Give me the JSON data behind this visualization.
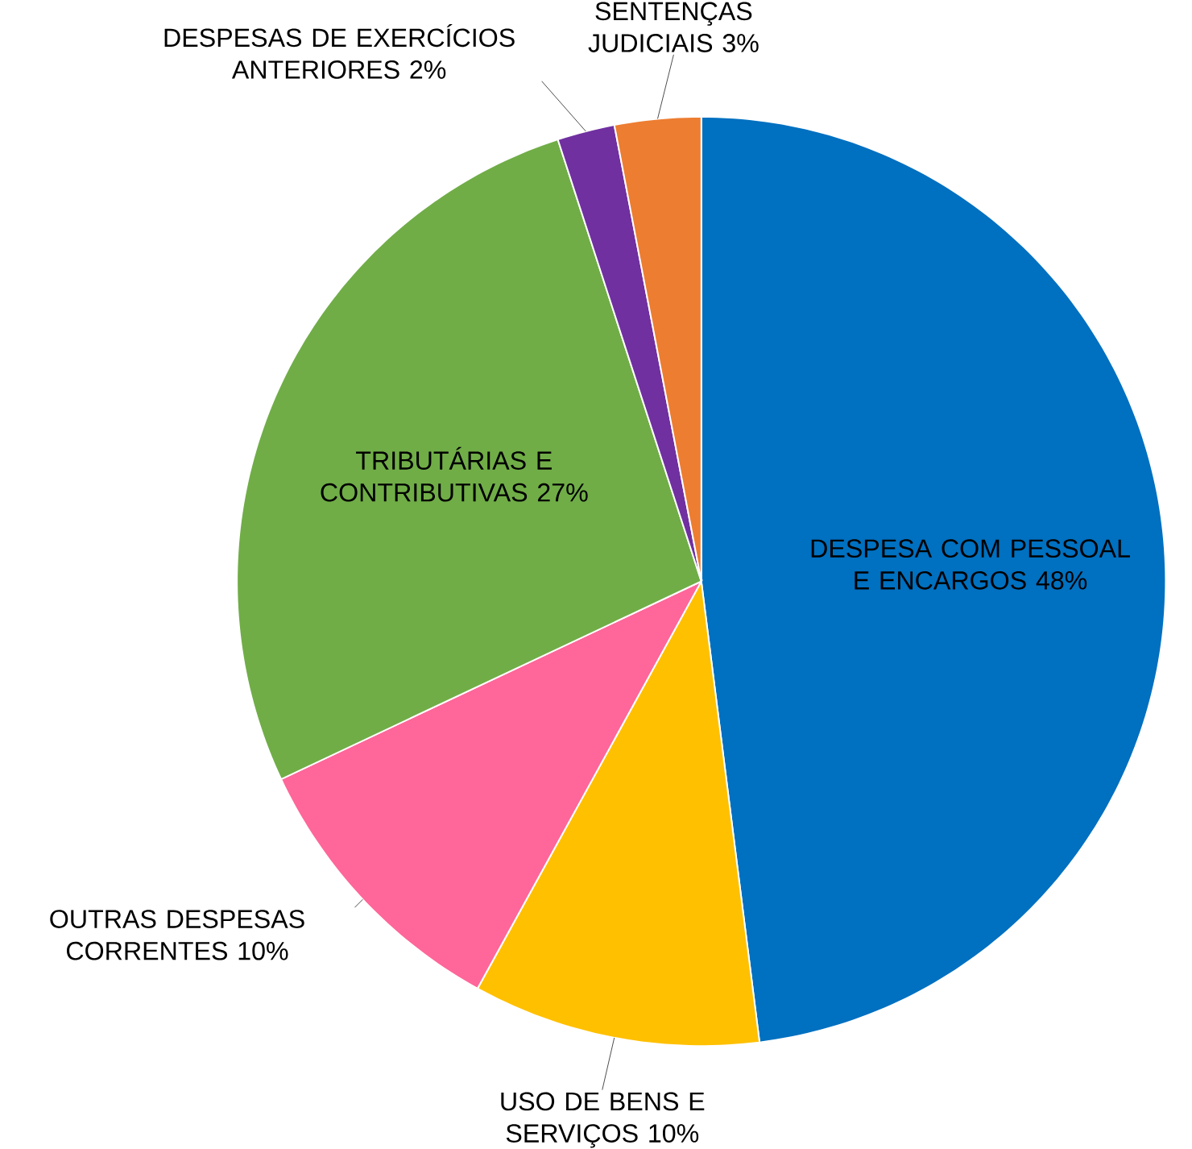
{
  "chart_data": {
    "type": "pie",
    "categories": [
      "DESPESA COM PESSOAL E ENCARGOS",
      "USO DE BENS E SERVIÇOS",
      "OUTRAS DESPESAS CORRENTES",
      "TRIBUTÁRIAS E CONTRIBUTIVAS",
      "DESPESAS DE EXERCÍCIOS ANTERIORES",
      "SENTENÇAS JUDICIAIS"
    ],
    "values": [
      48,
      10,
      10,
      27,
      2,
      3
    ],
    "value_labels": [
      "48%",
      "10%",
      "10%",
      "27%",
      "2%",
      "3%"
    ],
    "colors": [
      "#0070c0",
      "#ffc000",
      "#ff6699",
      "#70ad47",
      "#7030a0",
      "#ed7d31"
    ]
  }
}
